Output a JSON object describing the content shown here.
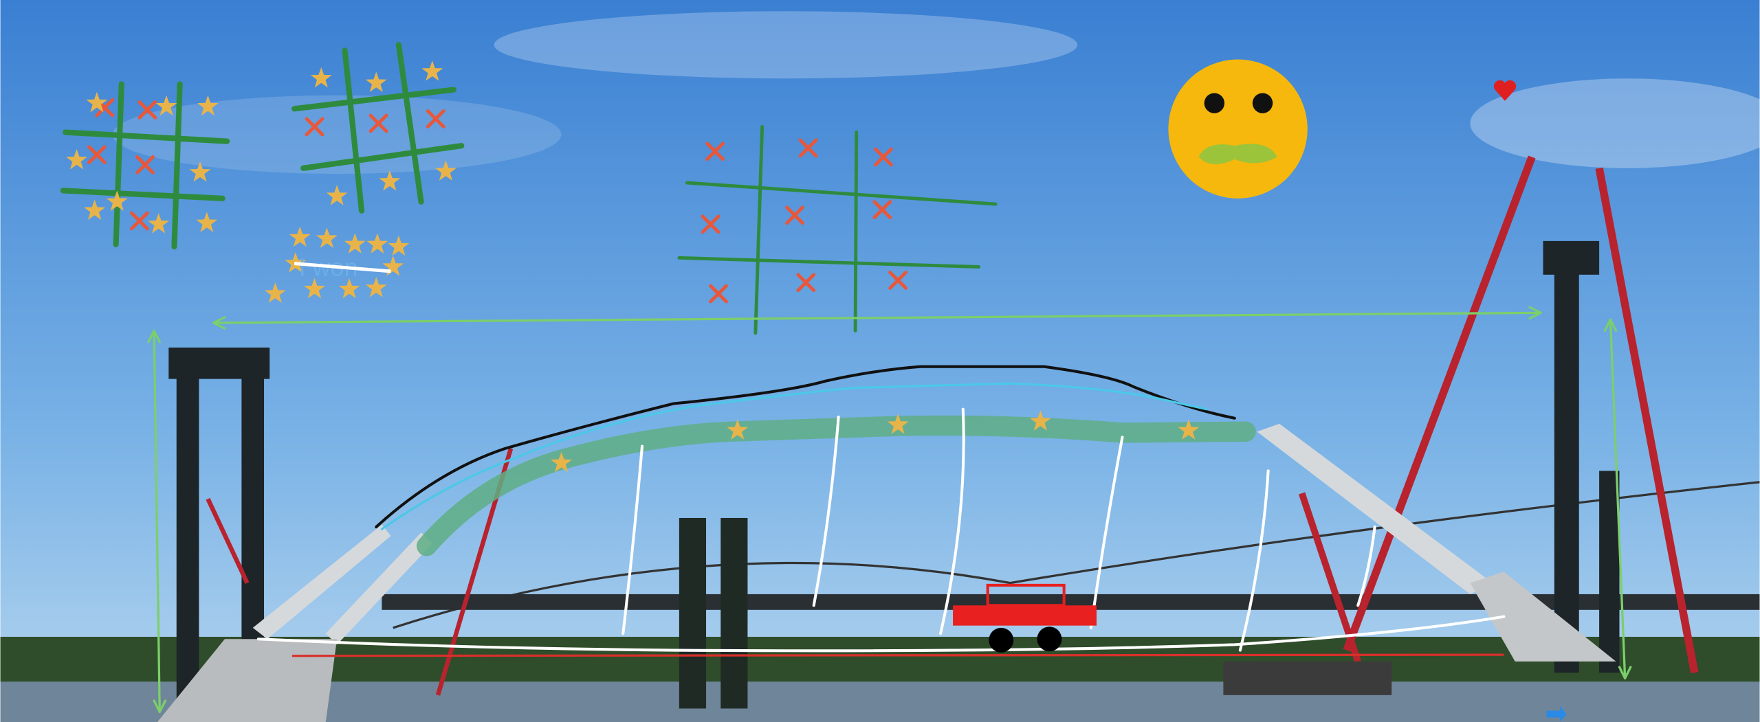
{
  "canvas": {
    "annotation_text": "I won"
  }
}
